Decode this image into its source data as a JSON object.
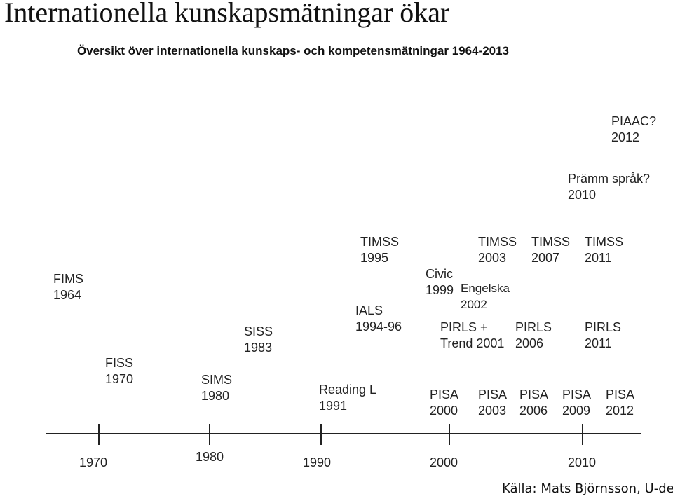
{
  "title": "Internationella kunskapsmätningar ökar",
  "diagram": {
    "subtitle": "Översikt över internationella kunskaps- och kompetensmätningar 1964-2013",
    "events": [
      {
        "name": "FIMS",
        "year": "1964"
      },
      {
        "name": "FISS",
        "year": "1970"
      },
      {
        "name": "SIMS",
        "year": "1980"
      },
      {
        "name": "SISS",
        "year": "1983"
      },
      {
        "name": "Reading L",
        "year": "1991"
      },
      {
        "name": "IALS",
        "year": "1994-96"
      },
      {
        "name": "TIMSS",
        "year": "1995"
      },
      {
        "name": "Civic",
        "year": "1999"
      },
      {
        "name": "Engelska",
        "year": "2002"
      },
      {
        "name": "TIMSS",
        "year": "2003"
      },
      {
        "name": "TIMSS",
        "year": "2007"
      },
      {
        "name": "TIMSS",
        "year": "2011"
      },
      {
        "name": "PIAAC?",
        "year": "2012"
      },
      {
        "name": "Prämm språk?",
        "year": "2010"
      },
      {
        "name": "PIRLS +",
        "year": "Trend 2001"
      },
      {
        "name": "PIRLS",
        "year": "2006"
      },
      {
        "name": "PIRLS",
        "year": "2011"
      },
      {
        "name": "PISA",
        "year": "2000"
      },
      {
        "name": "PISA",
        "year": "2003"
      },
      {
        "name": "PISA",
        "year": "2006"
      },
      {
        "name": "PISA",
        "year": "2009"
      },
      {
        "name": "PISA",
        "year": "2012"
      }
    ],
    "axis": {
      "ticks": [
        "1970",
        "1980",
        "1990",
        "2000",
        "2010"
      ]
    }
  },
  "source": "Källa: Mats Björnsson, U-dep"
}
